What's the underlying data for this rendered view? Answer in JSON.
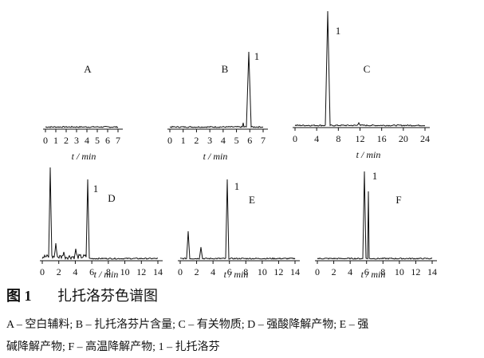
{
  "figure": {
    "panels": [
      {
        "label": "A",
        "ticks": [
          0,
          1,
          2,
          3,
          4,
          5,
          6,
          7
        ],
        "axis_label": "t / min"
      },
      {
        "label": "B",
        "peak_label": "1",
        "ticks": [
          0,
          1,
          2,
          3,
          4,
          5,
          6,
          7
        ],
        "axis_label": "t / min"
      },
      {
        "label": "C",
        "peak_label": "1",
        "ticks": [
          0,
          4,
          8,
          12,
          16,
          20,
          24
        ],
        "axis_label": "t / min"
      },
      {
        "label": "D",
        "peak_label": "1",
        "ticks": [
          0,
          2,
          4,
          6,
          8,
          10,
          12,
          14
        ],
        "axis_label": "t / min"
      },
      {
        "label": "E",
        "peak_label": "1",
        "ticks": [
          0,
          2,
          4,
          6,
          8,
          10,
          12,
          14
        ],
        "axis_label": "t / min"
      },
      {
        "label": "F",
        "peak_label": "1",
        "ticks": [
          0,
          2,
          4,
          6,
          8,
          10,
          12,
          14
        ],
        "axis_label": "t / min"
      }
    ]
  },
  "caption": {
    "number": "图 1",
    "title": "扎托洛芬色谱图",
    "lines": [
      "A – 空白辅料; B – 扎托洛芬片含量; C – 有关物质; D – 强酸降解产物; E – 强",
      "碱降解产物; F – 高温降解产物; 1 – 扎托洛芬"
    ]
  }
}
